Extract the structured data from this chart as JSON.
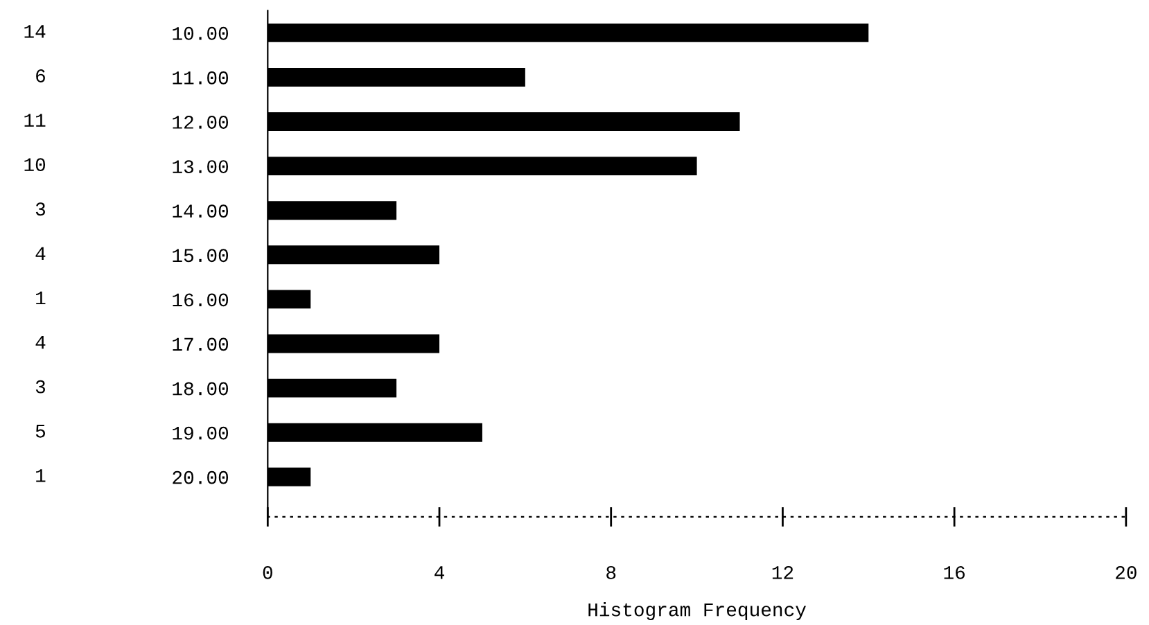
{
  "chart_data": {
    "type": "bar",
    "orientation": "horizontal",
    "xlabel": "Histogram Frequency",
    "categories": [
      "10.00",
      "11.00",
      "12.00",
      "13.00",
      "14.00",
      "15.00",
      "16.00",
      "17.00",
      "18.00",
      "19.00",
      "20.00"
    ],
    "values": [
      14,
      6,
      11,
      10,
      3,
      4,
      1,
      4,
      3,
      5,
      1
    ],
    "color": "#000000",
    "value_labels": [
      "14",
      "6",
      "11",
      "10",
      "3",
      "4",
      "1",
      "4",
      "3",
      "5",
      "1"
    ],
    "xlim": [
      0,
      20
    ],
    "xticks": [
      0,
      4,
      8,
      12,
      16,
      20
    ],
    "grid": false,
    "legend": false
  }
}
